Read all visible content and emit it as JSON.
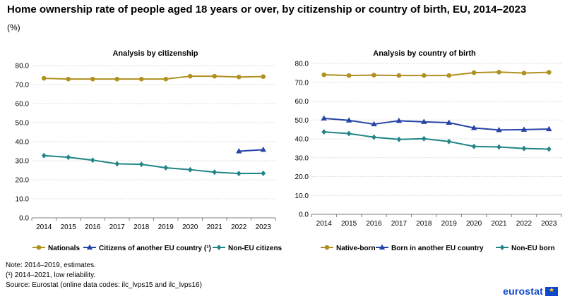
{
  "title": "Home ownership rate of people aged 18 years or over, by citizenship or country of birth, EU, 2014–2023",
  "unit": "(%)",
  "notes": [
    "Note: 2014–2019, estimates.",
    "(¹) 2014–2021, low reliability.",
    "Source: Eurostat (online data codes: ilc_lvps15 and ilc_lvps16)"
  ],
  "logo_text": "eurostat",
  "colors": {
    "gold": "#b09120",
    "blue": "#2644a7",
    "teal": "#208486",
    "grid": "#d9d9d9",
    "axis": "#7f7f7f"
  },
  "chart_data": [
    {
      "type": "line",
      "title": "Analysis by citizenship",
      "categories": [
        "2014",
        "2015",
        "2016",
        "2017",
        "2018",
        "2019",
        "2020",
        "2021",
        "2022",
        "2023"
      ],
      "ylim": [
        0,
        80
      ],
      "yticks": [
        "0.0",
        "10.0",
        "20.0",
        "30.0",
        "40.0",
        "50.0",
        "60.0",
        "70.0",
        "80.0"
      ],
      "series": [
        {
          "name": "Nationals",
          "color": "#b09120",
          "marker": "circle",
          "values": [
            73.3,
            72.9,
            72.9,
            72.9,
            72.9,
            72.9,
            74.4,
            74.4,
            74.0,
            74.2
          ]
        },
        {
          "name": "Citizens of another EU country (¹)",
          "color": "#2644a7",
          "marker": "triangle",
          "values": [
            null,
            null,
            null,
            null,
            null,
            null,
            null,
            null,
            35.0,
            35.8
          ]
        },
        {
          "name": "Non-EU citizens",
          "color": "#208486",
          "marker": "diamond",
          "values": [
            32.7,
            31.8,
            30.3,
            28.4,
            28.1,
            26.3,
            25.3,
            24.0,
            23.3,
            23.4
          ]
        }
      ]
    },
    {
      "type": "line",
      "title": "Analysis by country of birth",
      "categories": [
        "2014",
        "2015",
        "2016",
        "2017",
        "2018",
        "2019",
        "2020",
        "2021",
        "2022",
        "2023"
      ],
      "ylim": [
        0,
        80
      ],
      "yticks": [
        "0.0",
        "10.0",
        "20.0",
        "30.0",
        "40.0",
        "50.0",
        "60.0",
        "70.0",
        "80.0"
      ],
      "series": [
        {
          "name": "Native-born",
          "color": "#b09120",
          "marker": "circle",
          "values": [
            74.0,
            73.6,
            73.8,
            73.6,
            73.6,
            73.6,
            75.1,
            75.4,
            74.9,
            75.3
          ]
        },
        {
          "name": "Born in another EU country",
          "color": "#2644a7",
          "marker": "triangle",
          "values": [
            50.9,
            49.8,
            47.8,
            49.6,
            49.0,
            48.6,
            45.8,
            44.7,
            44.9,
            45.2
          ]
        },
        {
          "name": "Non-EU born",
          "color": "#208486",
          "marker": "diamond",
          "values": [
            43.7,
            42.8,
            40.9,
            39.7,
            40.1,
            38.6,
            36.0,
            35.7,
            34.9,
            34.6
          ]
        }
      ]
    }
  ]
}
